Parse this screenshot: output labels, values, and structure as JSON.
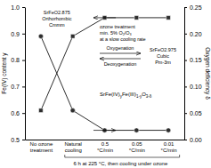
{
  "chart_data": {
    "type": "line",
    "categories": [
      "No ozone\ntreatment",
      "Natural\ncooling",
      "0.5\n°C/min",
      "0.05\n°C/min",
      "0.01\n°C/min"
    ],
    "color": "#2d2d2d",
    "series": [
      {
        "marker": "square",
        "values": [
          0.61,
          0.89,
          0.96,
          0.96,
          0.96
        ]
      },
      {
        "marker": "circle",
        "values": [
          0.89,
          0.61,
          0.535,
          0.535,
          0.535
        ]
      }
    ],
    "ylim": [
      0.5,
      1.0
    ],
    "yticks": [
      0.5,
      0.6,
      0.7,
      0.8,
      0.9,
      {
        "value": 1.0,
        "label": "1.0"
      }
    ],
    "y2lim": [
      0,
      0.25
    ],
    "y2ticks": [
      {
        "value": 0,
        "label": "0.00"
      },
      0.05,
      {
        "value": 0.1,
        "label": "0.10"
      },
      0.15,
      {
        "value": 0.2,
        "label": "0.20"
      },
      0.25
    ],
    "ylabel": "Fe(IV) content y",
    "y2label": "Oxygen deficiency δ",
    "xlabel": "6 h at 225 °C, then cooling under ozone",
    "annotations": [
      [
        "ozone treatment",
        "min. 5% O₂/O₃",
        "at a slow cooling rate"
      ],
      [
        "SrFe(IV)",
        "y",
        "Fe(III)",
        "1-y",
        "O",
        "3-δ"
      ],
      [
        "Oxygenation"
      ],
      [
        "Deoxygenation"
      ],
      [
        "SrFeO2.875",
        "Orthorhombic",
        "Cmmm"
      ],
      [
        "SrFeO2.975",
        "Cubic",
        "Pm-3m"
      ]
    ]
  }
}
